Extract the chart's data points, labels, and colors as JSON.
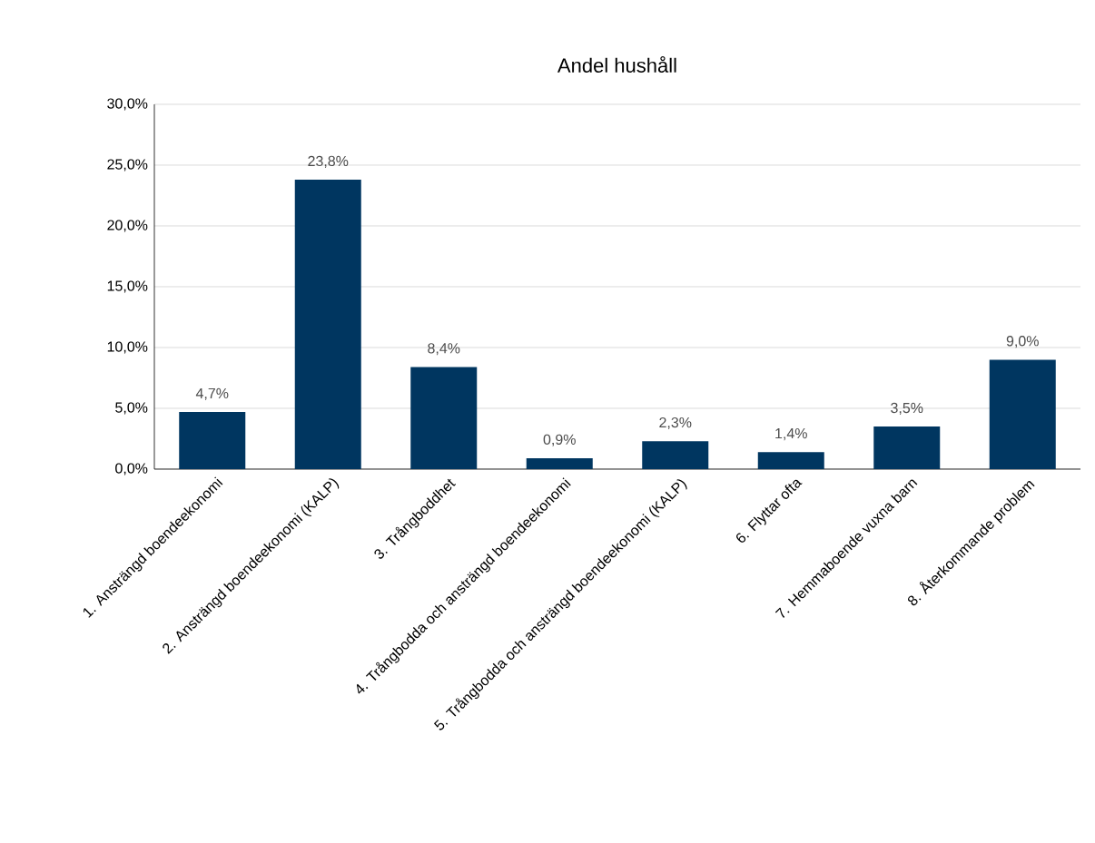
{
  "chart_data": {
    "type": "bar",
    "title": "Andel hushåll",
    "categories": [
      "1. Ansträngd boendeekonomi",
      "2. Ansträngd boendeekonomi (KALP)",
      "3. Trångboddhet",
      "4. Trångbodda och ansträngd boendeekonomi",
      "5. Trångbodda och ansträngd boendeekonomi (KALP)",
      "6. Flyttar ofta",
      "7. Hemmaboende vuxna barn",
      "8. Återkommande problem"
    ],
    "values": [
      4.7,
      23.8,
      8.4,
      0.9,
      2.3,
      1.4,
      3.5,
      9.0
    ],
    "value_labels": [
      "4,7%",
      "23,8%",
      "8,4%",
      "0,9%",
      "2,3%",
      "1,4%",
      "3,5%",
      "9,0%"
    ],
    "color": "#003660",
    "ylim": [
      0,
      30
    ],
    "yticks": [
      {
        "value": 0,
        "label": "0,0%"
      },
      {
        "value": 5,
        "label": "5,0%"
      },
      {
        "value": 10,
        "label": "10,0%"
      },
      {
        "value": 15,
        "label": "15,0%"
      },
      {
        "value": 20,
        "label": "20,0%"
      },
      {
        "value": 25,
        "label": "25,0%"
      },
      {
        "value": 30,
        "label": "30,0%"
      }
    ],
    "grid": "y"
  }
}
